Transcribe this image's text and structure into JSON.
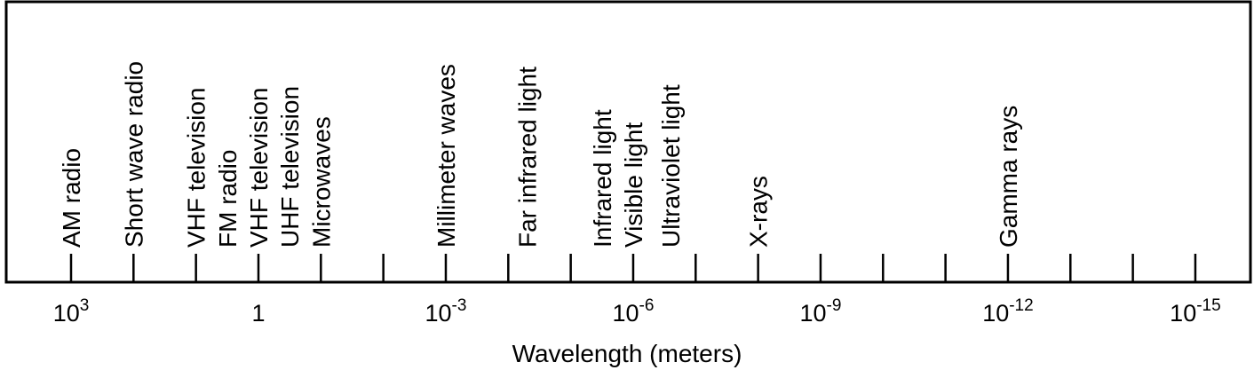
{
  "diagram": {
    "axis_label": "Wavelength (meters)",
    "axis": {
      "exp_start": 3,
      "exp_end": -15,
      "tick_step": 1,
      "major_label_step": 3
    },
    "tick_labels": [
      {
        "exponent": 3,
        "base": "10",
        "sup": "3"
      },
      {
        "exponent": 0,
        "base": "1",
        "sup": ""
      },
      {
        "exponent": -3,
        "base": "10",
        "sup": "-3"
      },
      {
        "exponent": -6,
        "base": "10",
        "sup": "-6"
      },
      {
        "exponent": -9,
        "base": "10",
        "sup": "-9"
      },
      {
        "exponent": -12,
        "base": "10",
        "sup": "-12"
      },
      {
        "exponent": -15,
        "base": "10",
        "sup": "-15"
      }
    ],
    "bands": [
      {
        "name": "AM radio",
        "exponent": 3
      },
      {
        "name": "Short wave radio",
        "exponent": 2
      },
      {
        "name": "VHF television",
        "exponent": 1
      },
      {
        "name": "FM radio",
        "exponent": 0.5
      },
      {
        "name": "VHF television",
        "exponent": 0
      },
      {
        "name": "UHF television",
        "exponent": -0.5
      },
      {
        "name": "Microwaves",
        "exponent": -1
      },
      {
        "name": "Millimeter waves",
        "exponent": -3
      },
      {
        "name": "Far infrared light",
        "exponent": -4.3
      },
      {
        "name": "Infrared light",
        "exponent": -5.5
      },
      {
        "name": "Visible light",
        "exponent": -6
      },
      {
        "name": "Ultraviolet light",
        "exponent": -6.6
      },
      {
        "name": "X-rays",
        "exponent": -8
      },
      {
        "name": "Gamma rays",
        "exponent": -12
      }
    ],
    "colors": {
      "line": "#000000",
      "text": "#000000",
      "background": "#ffffff"
    }
  }
}
